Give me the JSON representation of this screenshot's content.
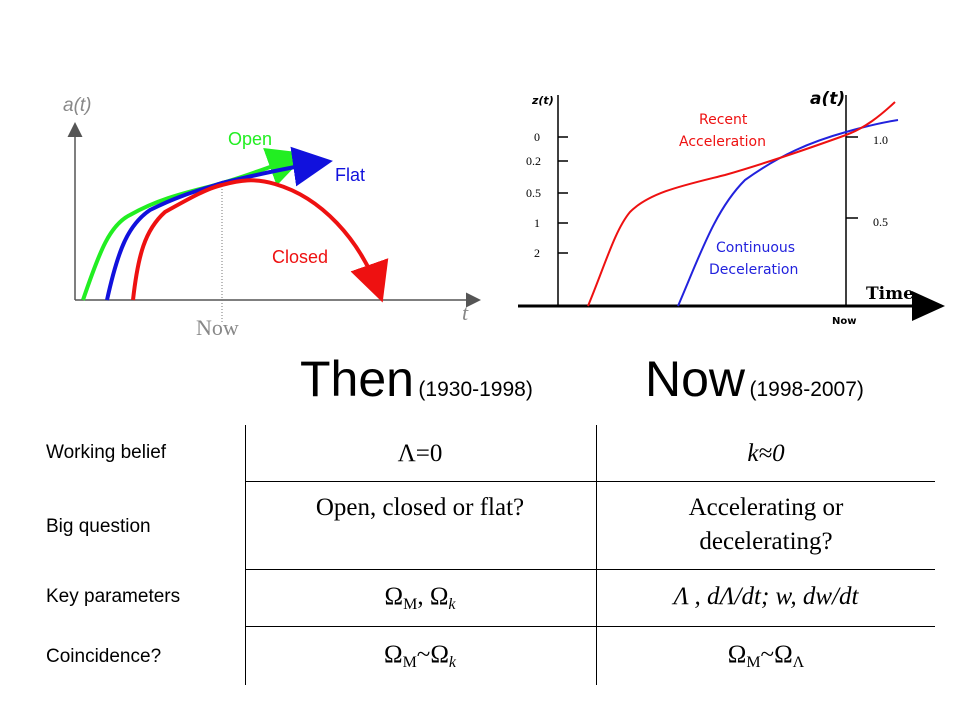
{
  "left_diagram": {
    "y_axis_label": "a(t)",
    "x_axis_label": "t",
    "now_label": "Now",
    "curves": {
      "open": {
        "label": "Open",
        "color": "#22ee22"
      },
      "flat": {
        "label": "Flat",
        "color": "#1111dd"
      },
      "closed": {
        "label": "Closed",
        "color": "#ee1111"
      }
    }
  },
  "right_diagram": {
    "z_axis_title": "z(t)",
    "a_axis_title": "a(t)",
    "z_ticks": [
      "0",
      "0.2",
      "0.5",
      "1",
      "2"
    ],
    "a_ticks": [
      "1.0",
      "0.5"
    ],
    "time_label": "Time",
    "now_label": "Now",
    "recent_label_line1": "Recent",
    "recent_label_line2": "Acceleration",
    "continuous_label_line1": "Continuous",
    "continuous_label_line2": "Deceleration",
    "colors": {
      "recent": "#ee1111",
      "continuous": "#2222dd"
    }
  },
  "headings": {
    "then": {
      "main": "Then",
      "years": "(1930-1998)"
    },
    "now": {
      "main": "Now",
      "years": "(1998-2007)"
    }
  },
  "table": {
    "rows": [
      {
        "label": "Working belief",
        "then": "Λ=0",
        "now": "k≈0"
      },
      {
        "label": "Big question",
        "then": "Open, closed or flat?",
        "now_line1": "Accelerating or",
        "now_line2": "decelerating?"
      },
      {
        "label": "Key parameters",
        "then_a": "Ω",
        "then_a_sub": "M",
        "then_sep": ", ",
        "then_b": "Ω",
        "then_b_sub": "k",
        "now": "Λ , dΛ/dt; w, dw/dt"
      },
      {
        "label": "Coincidence?",
        "then_a": "Ω",
        "then_a_sub": "M",
        "then_tilde": "~",
        "then_b": "Ω",
        "then_b_sub": "k",
        "now_a": "Ω",
        "now_a_sub": "M",
        "now_tilde": "~",
        "now_b": "Ω",
        "now_b_sub": "Λ"
      }
    ]
  }
}
